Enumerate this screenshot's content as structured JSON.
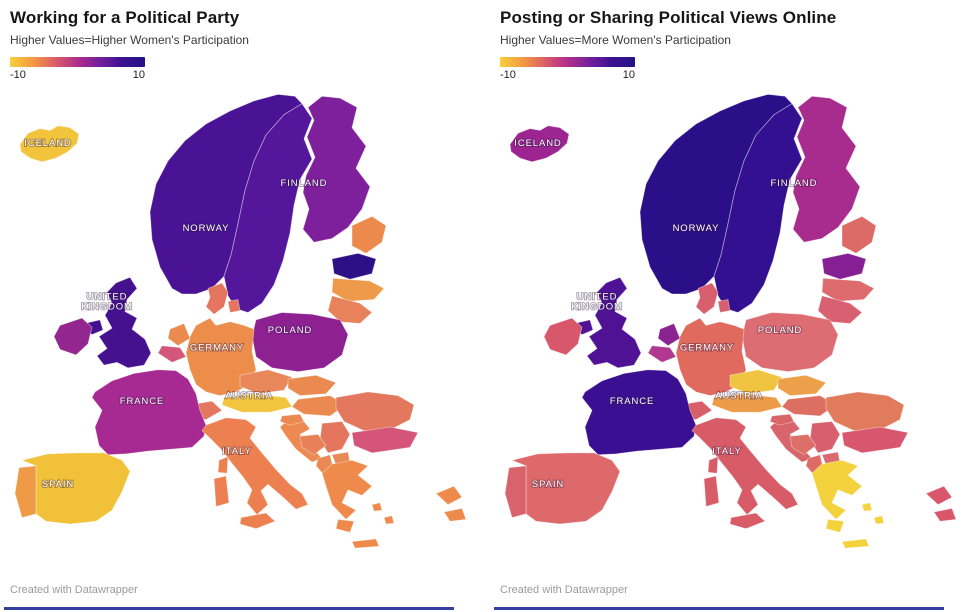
{
  "panels": [
    {
      "title": "Working for a Political Party",
      "subtitle": "Higher Values=Higher Women's Participation",
      "legend": {
        "min": "-10",
        "max": "10"
      },
      "footer": "Created with Datawrapper",
      "colors": {
        "iceland": "#f2c43c",
        "norway": "#4a1396",
        "sweden": "#54179b",
        "finland": "#7e209c",
        "russia": "#ec8a4e",
        "estonia": "#2d1085",
        "latvia": "#ee9a4b",
        "lithuania": "#e8825a",
        "denmark": "#e4755f",
        "uk": "#45118f",
        "ireland": "#94278f",
        "netherlands": "#e98a4f",
        "belgium": "#d4567a",
        "germany": "#ec8d4c",
        "poland": "#8d2192",
        "czechia": "#e8875a",
        "slovakia": "#ea8a50",
        "hungary": "#ea8a50",
        "austria": "#f2c53e",
        "switzerland": "#e47760",
        "france": "#a62a92",
        "spain": "#f1c139",
        "portugal": "#ee9a47",
        "italy": "#ed8050",
        "slovenia": "#ea8a52",
        "croatia": "#ec8a52",
        "bosnia": "#e88058",
        "serbia": "#e4765e",
        "albania": "#ea8a52",
        "macedonia": "#e88a54",
        "romania": "#e4785e",
        "bulgaria": "#d4547a",
        "greece": "#ee8b4c",
        "turkey": "#ee8b4c"
      }
    },
    {
      "title": "Posting or Sharing Political Views Online",
      "subtitle": "Higher Values=More Women's Participation",
      "legend": {
        "min": "-10",
        "max": "10"
      },
      "footer": "Created with Datawrapper",
      "colors": {
        "iceland": "#9c2592",
        "norway": "#2b0f88",
        "sweden": "#321090",
        "finland": "#a82c8e",
        "russia": "#dc6a66",
        "estonia": "#861f94",
        "latvia": "#dd6b6e",
        "lithuania": "#d86070",
        "denmark": "#d85f6d",
        "uk": "#4f1295",
        "ireland": "#d8576b",
        "netherlands": "#8a2390",
        "belgium": "#b03890",
        "germany": "#e06a5e",
        "poland": "#dd6d72",
        "czechia": "#f0c441",
        "slovakia": "#eda04a",
        "hungary": "#dd6f62",
        "austria": "#ec9b47",
        "switzerland": "#d85f68",
        "france": "#3a0f91",
        "spain": "#de696b",
        "portugal": "#d8636d",
        "italy": "#d85c68",
        "slovenia": "#da6668",
        "croatia": "#d8646c",
        "bosnia": "#dc6f68",
        "serbia": "#d85f6e",
        "albania": "#dd6b66",
        "macedonia": "#d96a70",
        "romania": "#e07c5c",
        "bulgaria": "#d8576f",
        "greece": "#f4d23d",
        "turkey": "#d8576b"
      }
    }
  ],
  "map_labels": [
    {
      "id": "iceland",
      "text": "ICELAND"
    },
    {
      "id": "norway",
      "text": "NORWAY"
    },
    {
      "id": "finland",
      "text": "FINLAND"
    },
    {
      "id": "uk",
      "text": "UNITED KINGDOM"
    },
    {
      "id": "germany",
      "text": "GERMANY"
    },
    {
      "id": "poland",
      "text": "POLAND"
    },
    {
      "id": "france",
      "text": "FRANCE"
    },
    {
      "id": "austria",
      "text": "AUSTRIA"
    },
    {
      "id": "italy",
      "text": "ITALY"
    },
    {
      "id": "spain",
      "text": "SPAIN"
    }
  ],
  "legend_gradient": [
    "#f7cf3b",
    "#f49a43",
    "#dd5e66",
    "#b02e8c",
    "#71209c",
    "#3c1292",
    "#261184"
  ],
  "bottom_rule_color": "#3340a0"
}
